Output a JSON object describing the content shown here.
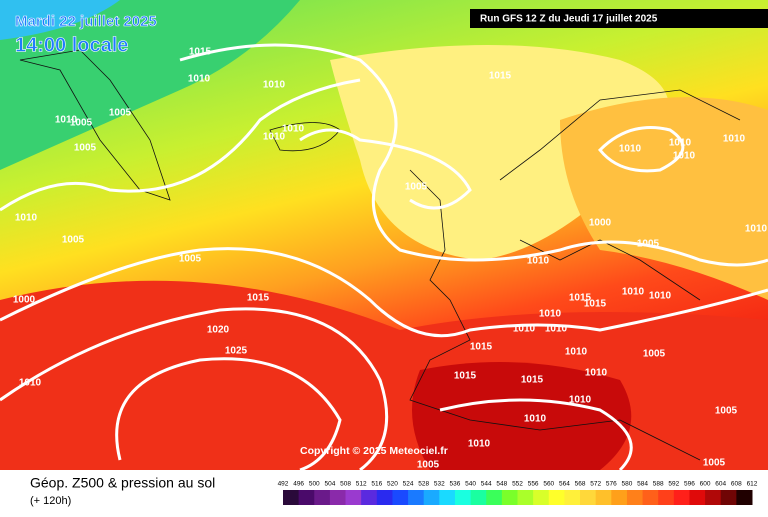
{
  "header": {
    "date": "Mardi 22 juillet 2025",
    "time": "14:00 locale",
    "run": "Run GFS 12 Z du Jeudi 17 juillet 2025"
  },
  "isobar_labels": [
    "1015",
    "1010",
    "1010",
    "1015",
    "1005",
    "1010",
    "1005",
    "1005",
    "1010",
    "1010",
    "1005",
    "1010",
    "1010",
    "1010",
    "1010",
    "1010",
    "1005",
    "1005",
    "1000",
    "1005",
    "1010",
    "1010",
    "1000",
    "1015",
    "1015",
    "1015",
    "1010",
    "1010",
    "1010",
    "1010",
    "1010",
    "1020",
    "1025",
    "1015",
    "1010",
    "1005",
    "1010",
    "1015",
    "1015",
    "1010",
    "1010",
    "1010",
    "1005",
    "1010",
    "1005",
    "1005"
  ],
  "copyright": "Copyright © 2025 Meteociel.fr",
  "legend": {
    "title": "Géop. Z500 & pression au sol",
    "subtitle": "(+ 120h)",
    "ticks": [
      492,
      496,
      500,
      504,
      508,
      512,
      516,
      520,
      524,
      528,
      532,
      536,
      540,
      544,
      548,
      552,
      556,
      560,
      564,
      568,
      572,
      576,
      580,
      584,
      588,
      592,
      596,
      600,
      604,
      608,
      612
    ],
    "colors": [
      "#2a0a3a",
      "#4a0a6a",
      "#6a1a8a",
      "#8a2aaa",
      "#9a3acf",
      "#5a2adf",
      "#2a2aef",
      "#1a4aff",
      "#1a7aff",
      "#1aaaff",
      "#1adaff",
      "#1affe0",
      "#1affa0",
      "#3aff5a",
      "#7aff2a",
      "#aaff2a",
      "#d8ff2a",
      "#ffff2a",
      "#fff03a",
      "#ffd83a",
      "#ffc02a",
      "#ffa01a",
      "#ff801a",
      "#ff601a",
      "#ff401a",
      "#ff201a",
      "#e00a0a",
      "#b00808",
      "#700505",
      "#200000"
    ]
  }
}
